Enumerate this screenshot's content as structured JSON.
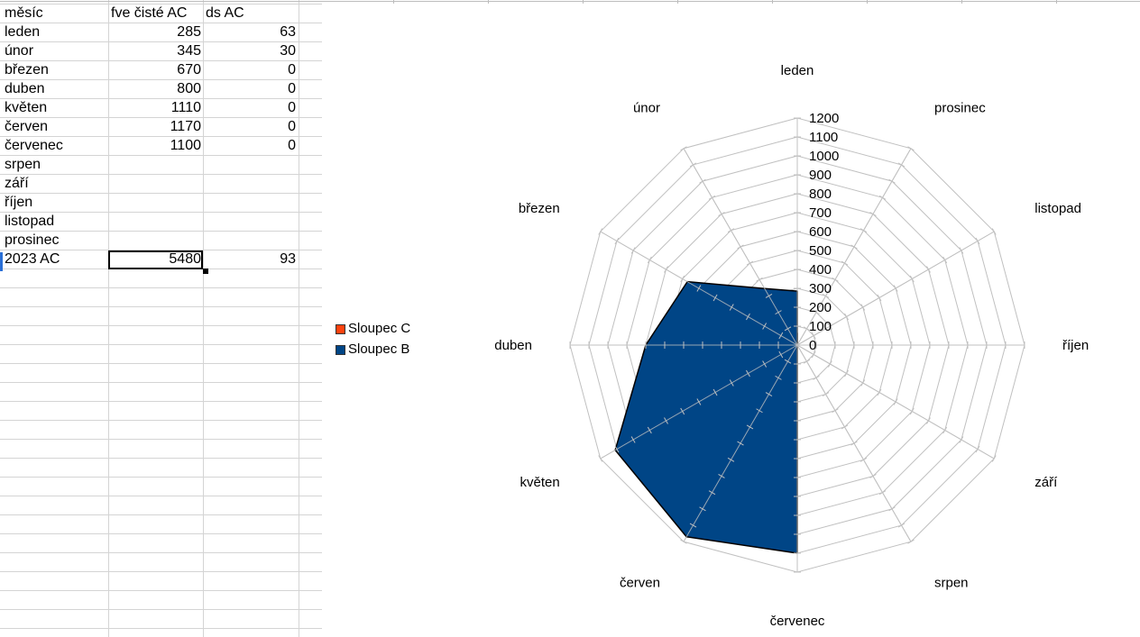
{
  "sheet": {
    "header": [
      "měsíc",
      "fve čisté AC",
      "ds AC"
    ],
    "rows": [
      [
        "leden",
        "285",
        "63"
      ],
      [
        "únor",
        "345",
        "30"
      ],
      [
        "březen",
        "670",
        "0"
      ],
      [
        "duben",
        "800",
        "0"
      ],
      [
        "květen",
        "1110",
        "0"
      ],
      [
        "červen",
        "1170",
        "0"
      ],
      [
        "červenec",
        "1100",
        "0"
      ],
      [
        "srpen",
        "",
        ""
      ],
      [
        "září",
        "",
        ""
      ],
      [
        "říjen",
        "",
        ""
      ],
      [
        "listopad",
        "",
        ""
      ],
      [
        "prosinec",
        "",
        ""
      ],
      [
        "2023 AC",
        "5480",
        "93"
      ]
    ],
    "active_cell_value": "5480"
  },
  "chart_data": {
    "type": "radar",
    "categories": [
      "leden",
      "únor",
      "březen",
      "duben",
      "květen",
      "červen",
      "červenec",
      "srpen",
      "září",
      "říjen",
      "listopad",
      "prosinec"
    ],
    "series": [
      {
        "name": "Sloupec C",
        "values": [
          63,
          30,
          0,
          0,
          0,
          0,
          0,
          null,
          null,
          null,
          null,
          null
        ],
        "color": "#ff420e"
      },
      {
        "name": "Sloupec B",
        "values": [
          285,
          345,
          670,
          800,
          1110,
          1170,
          1100,
          null,
          null,
          null,
          null,
          null
        ],
        "color": "#004586"
      }
    ],
    "r_range": [
      0,
      1200
    ],
    "r_ticks": [
      "0",
      "100",
      "200",
      "300",
      "400",
      "500",
      "600",
      "700",
      "800",
      "900",
      "1000",
      "1100",
      "1200"
    ],
    "legend_position": "left",
    "grid": true
  },
  "colors": {
    "grid": "#c0c0c0",
    "cell_border": "#d4d4d4",
    "active_border": "#000000"
  }
}
